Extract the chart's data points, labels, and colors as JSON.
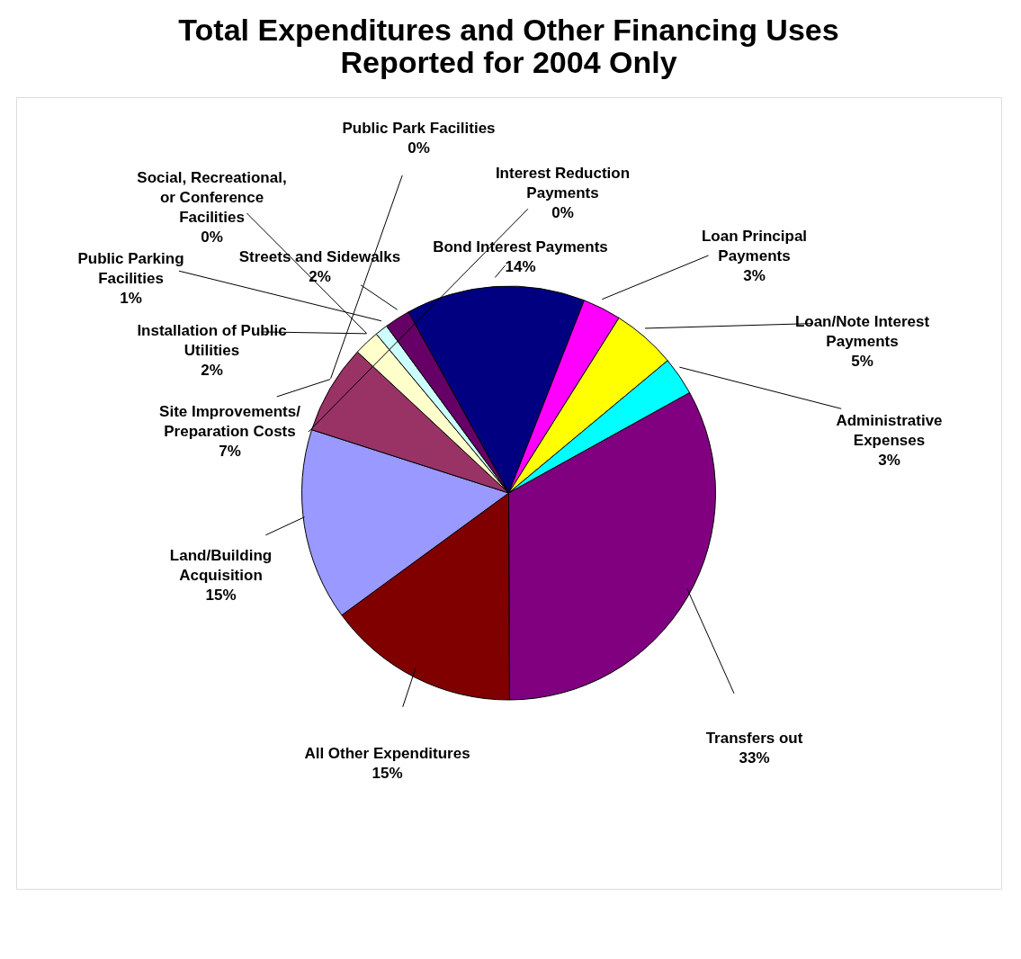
{
  "chart_data": {
    "type": "pie",
    "title": [
      "Total Expenditures and Other Financing Uses",
      "Reported for 2004 Only"
    ],
    "categories": [
      "Bond Interest Payments",
      "Loan Principal Payments",
      "Loan/Note Interest Payments",
      "Administrative Expenses",
      "Transfers out",
      "All Other Expenditures",
      "Land/Building Acquisition",
      "Site Improvements/ Preparation Costs",
      "Installation of Public Utilities",
      "Public Parking Facilities",
      "Streets and Sidewalks",
      "Social, Recreational, or Conference Facilities",
      "Public Park Facilities",
      "Interest Reduction Payments"
    ],
    "values": [
      14,
      3,
      5,
      3,
      33,
      15,
      15,
      7,
      2,
      1,
      2,
      0,
      0,
      0
    ],
    "colors": [
      "#000080",
      "#ff00ff",
      "#ffff00",
      "#00ffff",
      "#800080",
      "#800000",
      "#9999ff",
      "#993366",
      "#ffffcc",
      "#ccffff",
      "#660066",
      "#ff8080",
      "#0066cc",
      "#ccccff"
    ],
    "value_labels": [
      "14%",
      "3%",
      "5%",
      "3%",
      "33%",
      "15%",
      "15%",
      "7%",
      "2%",
      "1%",
      "2%",
      "0%",
      "0%",
      "0%"
    ],
    "legend": false
  }
}
